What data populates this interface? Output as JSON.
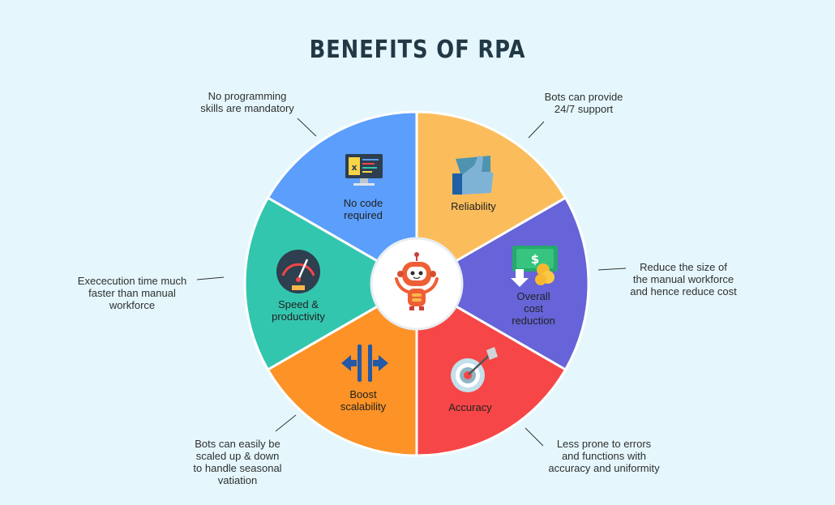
{
  "title": "BENEFITS OF RPA",
  "colors": {
    "background": "#e5f7fd",
    "title": "#223845",
    "no_code": "#5b9efb",
    "reliability": "#fbbd5c",
    "cost_reduction": "#6664d8",
    "accuracy": "#f64647",
    "scalability": "#fd9226",
    "speed": "#33c6ae",
    "robot": "#ef5f35"
  },
  "segments": [
    {
      "id": "no-code",
      "label": "No code\nrequired",
      "icon": "computer-code-icon"
    },
    {
      "id": "reliability",
      "label": "Reliability",
      "icon": "thumbs-up-icon"
    },
    {
      "id": "cost",
      "label": "Overall\ncost\nreduction",
      "icon": "money-icon"
    },
    {
      "id": "accuracy",
      "label": "Accuracy",
      "icon": "target-icon"
    },
    {
      "id": "scalability",
      "label": "Boost\nscalability",
      "icon": "scale-arrows-icon"
    },
    {
      "id": "speed",
      "label": "Speed &\nproductivity",
      "icon": "speedometer-icon"
    }
  ],
  "notes": {
    "no_code": "No programming\nskills are mandatory",
    "reliability": "Bots can provide\n24/7 support",
    "cost": "Reduce the size of\nthe manual workforce\nand hence reduce cost",
    "accuracy": "Less prone to errors\nand functions with\naccuracy and uniformity",
    "scalability": "Bots can easily be\nscaled up & down\nto handle seasonal\nvatiation",
    "speed": "Exececution time much\nfaster than manual\nworkforce"
  },
  "center_icon": "robot-icon"
}
